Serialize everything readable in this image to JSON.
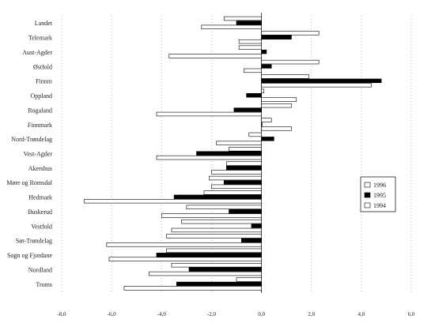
{
  "chart_data": {
    "type": "bar",
    "orientation": "horizontal",
    "title": "",
    "xlabel": "",
    "ylabel": "",
    "xlim": [
      -8.0,
      6.0
    ],
    "xticks": [
      "-8,0",
      "-6,0",
      "-4,0",
      "-2,0",
      "0,0",
      "2,0",
      "4,0",
      "6,0"
    ],
    "grid": "vertical dotted",
    "legend_position": "right",
    "categories": [
      "Landet",
      "Telemark",
      "Aust-Agder",
      "Østfold",
      "Finnm",
      "Oppland",
      "Rogaland",
      "Finnmark",
      "Nord-Trøndelag",
      "Vest-Agder",
      "Akershus",
      "Møre og Romsdal",
      "Hedmark",
      "Buskerud",
      "Vestfold",
      "Sør-Trøndelag",
      "Sogn og Fjordane",
      "Nordland",
      "Troms"
    ],
    "series": [
      {
        "name": "1996",
        "color": "#ffffff",
        "values": [
          -1.5,
          2.3,
          -0.9,
          2.3,
          1.9,
          0.1,
          1.2,
          0.4,
          -0.5,
          -1.3,
          -1.4,
          -2.1,
          -2.3,
          -3.0,
          -3.2,
          -3.8,
          -3.8,
          -3.6,
          -1.0
        ]
      },
      {
        "name": "1995",
        "color": "#000000",
        "values": [
          -1.0,
          1.2,
          0.2,
          0.4,
          4.8,
          -0.6,
          -1.1,
          0.0,
          0.5,
          -2.6,
          -1.4,
          -1.5,
          -3.5,
          -1.3,
          -0.4,
          -0.8,
          -4.2,
          -2.9,
          -3.4
        ]
      },
      {
        "name": "1994",
        "color": "#ffffff",
        "values": [
          -2.4,
          -0.9,
          -3.7,
          -0.7,
          4.4,
          1.4,
          -4.2,
          1.2,
          -1.8,
          -4.2,
          -2.0,
          -2.0,
          -7.1,
          -4.0,
          -3.6,
          -6.2,
          -6.1,
          -4.5,
          -5.5
        ]
      }
    ]
  }
}
